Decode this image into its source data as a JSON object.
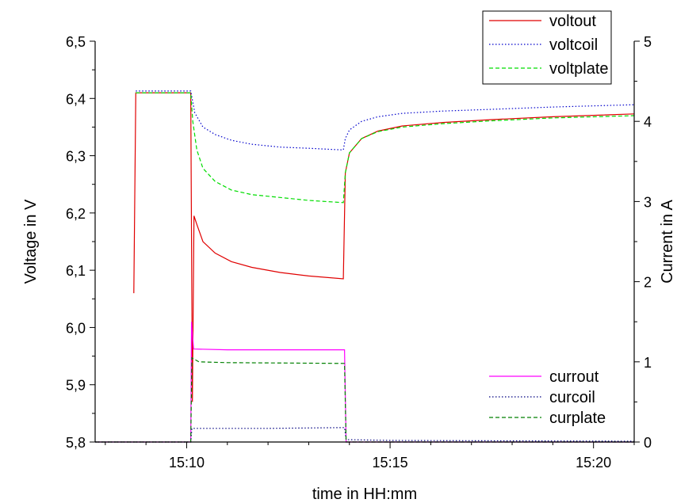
{
  "chart_data": {
    "type": "line",
    "xlabel": "time in HH:mm",
    "ylabel_left": "Voltage in V",
    "ylabel_right": "Current in A",
    "x_ticks": [
      {
        "label": "15:10",
        "minute": 10
      },
      {
        "label": "15:15",
        "minute": 15
      },
      {
        "label": "15:20",
        "minute": 20
      }
    ],
    "xlim_minutes": [
      7.75,
      21.0
    ],
    "y_left_ticks": [
      "5,8",
      "5,9",
      "6,0",
      "6,1",
      "6,2",
      "6,3",
      "6,4",
      "6,5"
    ],
    "y_left_values": [
      5.8,
      5.9,
      6.0,
      6.1,
      6.2,
      6.3,
      6.4,
      6.5
    ],
    "ylim_left": [
      5.8,
      6.5
    ],
    "y_right_ticks": [
      "0",
      "1",
      "2",
      "3",
      "4",
      "5"
    ],
    "y_right_values": [
      0,
      1,
      2,
      3,
      4,
      5
    ],
    "ylim_right": [
      0,
      5
    ],
    "grid": false,
    "legend_voltage_position": "top-right",
    "legend_current_position": "lower-right",
    "series": [
      {
        "name": "voltout",
        "axis": "left",
        "color": "#e00000",
        "dash": "solid",
        "points": [
          [
            8.7,
            6.06
          ],
          [
            8.75,
            6.41
          ],
          [
            10.1,
            6.41
          ],
          [
            10.14,
            5.87
          ],
          [
            10.18,
            6.195
          ],
          [
            10.25,
            6.18
          ],
          [
            10.4,
            6.15
          ],
          [
            10.7,
            6.13
          ],
          [
            11.1,
            6.115
          ],
          [
            11.6,
            6.105
          ],
          [
            12.3,
            6.096
          ],
          [
            13.0,
            6.09
          ],
          [
            13.85,
            6.085
          ],
          [
            13.9,
            6.27
          ],
          [
            14.0,
            6.305
          ],
          [
            14.3,
            6.33
          ],
          [
            14.7,
            6.343
          ],
          [
            15.3,
            6.352
          ],
          [
            16.3,
            6.358
          ],
          [
            17.5,
            6.363
          ],
          [
            19.0,
            6.368
          ],
          [
            21.0,
            6.373
          ]
        ]
      },
      {
        "name": "voltcoil",
        "axis": "left",
        "color": "#0000cc",
        "dash": "dot",
        "points": [
          [
            8.75,
            6.413
          ],
          [
            10.1,
            6.413
          ],
          [
            10.2,
            6.375
          ],
          [
            10.4,
            6.35
          ],
          [
            10.7,
            6.337
          ],
          [
            11.1,
            6.327
          ],
          [
            11.6,
            6.32
          ],
          [
            12.3,
            6.315
          ],
          [
            13.0,
            6.313
          ],
          [
            13.85,
            6.31
          ],
          [
            13.9,
            6.33
          ],
          [
            14.0,
            6.345
          ],
          [
            14.3,
            6.36
          ],
          [
            14.7,
            6.368
          ],
          [
            15.3,
            6.374
          ],
          [
            16.3,
            6.378
          ],
          [
            17.5,
            6.381
          ],
          [
            19.0,
            6.385
          ],
          [
            21.0,
            6.389
          ]
        ]
      },
      {
        "name": "voltplate",
        "axis": "left",
        "color": "#00dd00",
        "dash": "dash",
        "points": [
          [
            8.75,
            6.41
          ],
          [
            10.1,
            6.41
          ],
          [
            10.15,
            6.36
          ],
          [
            10.25,
            6.31
          ],
          [
            10.4,
            6.278
          ],
          [
            10.7,
            6.255
          ],
          [
            11.1,
            6.24
          ],
          [
            11.6,
            6.232
          ],
          [
            12.3,
            6.227
          ],
          [
            13.0,
            6.222
          ],
          [
            13.85,
            6.218
          ],
          [
            13.9,
            6.27
          ],
          [
            14.0,
            6.305
          ],
          [
            14.3,
            6.33
          ],
          [
            14.7,
            6.342
          ],
          [
            15.3,
            6.35
          ],
          [
            16.3,
            6.356
          ],
          [
            17.5,
            6.361
          ],
          [
            19.0,
            6.366
          ],
          [
            21.0,
            6.37
          ]
        ]
      },
      {
        "name": "currout",
        "axis": "right",
        "color": "#ff00ff",
        "dash": "solid",
        "points": [
          [
            7.75,
            0.0
          ],
          [
            10.1,
            0.0
          ],
          [
            10.12,
            1.5
          ],
          [
            10.17,
            1.16
          ],
          [
            11.0,
            1.15
          ],
          [
            13.88,
            1.15
          ],
          [
            13.92,
            0.0
          ],
          [
            21.0,
            0.0
          ]
        ]
      },
      {
        "name": "curcoil",
        "axis": "right",
        "color": "#000080",
        "dash": "dot",
        "points": [
          [
            7.75,
            0.0
          ],
          [
            10.1,
            0.0
          ],
          [
            10.13,
            0.17
          ],
          [
            12.0,
            0.17
          ],
          [
            13.88,
            0.18
          ],
          [
            13.92,
            0.03
          ],
          [
            15.0,
            0.02
          ],
          [
            21.0,
            0.01
          ]
        ]
      },
      {
        "name": "curplate",
        "axis": "right",
        "color": "#008000",
        "dash": "dash",
        "points": [
          [
            7.75,
            0.0
          ],
          [
            10.1,
            0.0
          ],
          [
            10.13,
            1.05
          ],
          [
            10.3,
            1.0
          ],
          [
            11.0,
            0.99
          ],
          [
            13.88,
            0.98
          ],
          [
            13.92,
            0.0
          ],
          [
            21.0,
            0.0
          ]
        ]
      }
    ]
  }
}
